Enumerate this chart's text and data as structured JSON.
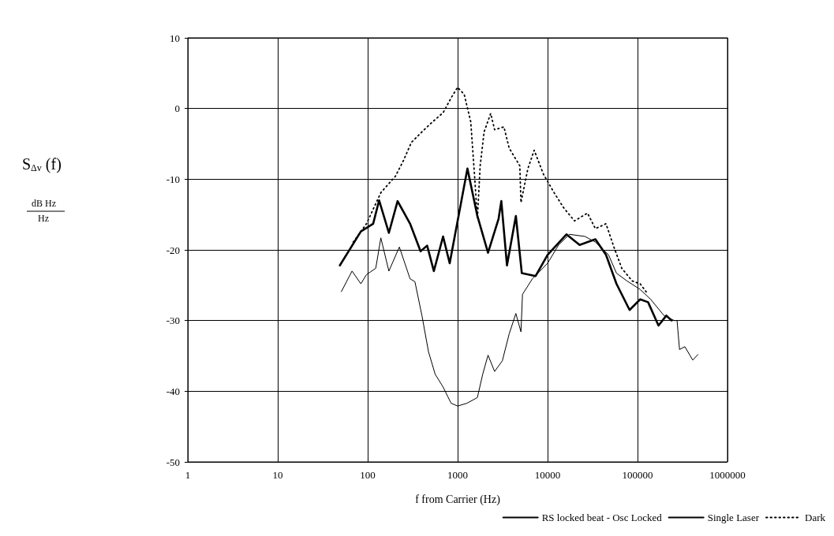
{
  "chart_data": {
    "type": "line",
    "xlabel": "f from Carrier (Hz)",
    "annotations": [
      "S$_{Δv}$ (f)",
      "dB Hz",
      "Hz"
    ],
    "log": "x",
    "xlim": [
      1,
      1000000
    ],
    "xticks": [
      1,
      10,
      100,
      1000,
      10000,
      100000,
      1000000
    ],
    "ylim": [
      -50,
      10
    ],
    "yticks": [
      -50,
      -40,
      -30,
      -20,
      -10,
      0,
      10
    ],
    "grid": true,
    "legend": "bottom right",
    "marker": "none",
    "series": [
      {
        "name": "RS locked beat - Osc Locked",
        "color": "#000000",
        "line_style": "solid",
        "x": [
          49,
          84,
          115,
          134,
          172,
          215,
          296,
          387,
          458,
          544,
          689,
          816,
          1000,
          1285,
          1657,
          2177,
          2852,
          3060,
          3536,
          4440,
          5170,
          7360,
          10000,
          16200,
          22700,
          34000,
          44600,
          58300,
          81600,
          107000,
          131000,
          171000,
          209000,
          239000
        ],
        "values": [
          -22.2,
          -17.4,
          -16.3,
          -13.0,
          -17.6,
          -13.1,
          -16.3,
          -20.2,
          -19.4,
          -23.0,
          -18.1,
          -21.9,
          -15.9,
          -8.5,
          -15.2,
          -20.4,
          -15.6,
          -13.1,
          -22.2,
          -15.2,
          -23.3,
          -23.7,
          -20.7,
          -17.8,
          -19.3,
          -18.5,
          -20.7,
          -24.8,
          -28.5,
          -27.0,
          -27.4,
          -30.7,
          -29.3,
          -30.0
        ]
      },
      {
        "name": "Single Laser",
        "color": "#000000",
        "line_style": "solid",
        "x": [
          51,
          67,
          84,
          97,
          123,
          140,
          172,
          225,
          296,
          335,
          401,
          474,
          563,
          689,
          846,
          1000,
          1268,
          1657,
          1900,
          2177,
          2578,
          3140,
          3740,
          4440,
          5060,
          5260,
          6770,
          10000,
          13260,
          17500,
          26000,
          34000,
          47600,
          58300,
          76400,
          107000,
          140000,
          197000,
          256000,
          275000,
          293000,
          336000,
          411000,
          470000
        ],
        "values": [
          -25.9,
          -23.0,
          -24.8,
          -23.5,
          -22.6,
          -18.3,
          -23.0,
          -19.6,
          -24.1,
          -24.5,
          -29.3,
          -34.4,
          -37.6,
          -39.4,
          -41.7,
          -42.1,
          -41.7,
          -40.9,
          -37.6,
          -34.9,
          -37.2,
          -35.7,
          -31.9,
          -29.0,
          -31.6,
          -26.3,
          -24.1,
          -21.9,
          -19.3,
          -17.8,
          -18.1,
          -18.9,
          -20.7,
          -23.3,
          -24.4,
          -25.6,
          -27.0,
          -29.3,
          -30.0,
          -30.0,
          -34.1,
          -33.7,
          -35.6,
          -34.8
        ]
      },
      {
        "name": "Dark",
        "color": "#000000",
        "line_style": "dotted",
        "x": [
          69,
          97,
          140,
          203,
          249,
          306,
          401,
          525,
          689,
          846,
          1000,
          1183,
          1400,
          1552,
          1657,
          1780,
          1970,
          2330,
          2578,
          3270,
          3740,
          4910,
          5060,
          6040,
          7100,
          9000,
          11800,
          15200,
          19900,
          27800,
          34000,
          44600,
          54600,
          66800,
          87300,
          107000,
          131000
        ],
        "values": [
          -18.9,
          -16.3,
          -11.9,
          -9.6,
          -7.4,
          -4.8,
          -3.3,
          -1.9,
          -0.6,
          1.5,
          3.0,
          2.0,
          -1.9,
          -10.0,
          -15.6,
          -8.1,
          -3.3,
          -0.7,
          -3.0,
          -2.6,
          -5.6,
          -8.1,
          -13.3,
          -8.5,
          -5.9,
          -9.3,
          -11.9,
          -14.1,
          -15.9,
          -14.8,
          -17.0,
          -16.3,
          -19.6,
          -22.6,
          -24.4,
          -24.8,
          -26.3
        ]
      }
    ]
  }
}
